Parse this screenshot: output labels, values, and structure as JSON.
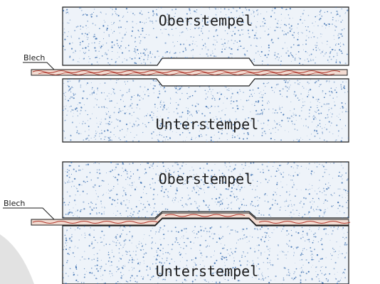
{
  "top_panel": {
    "upper_die_label": "Oberstempel",
    "lower_die_label": "Unterstempel",
    "sheet_label": "Blech"
  },
  "bottom_panel": {
    "upper_die_label": "Oberstempel",
    "lower_die_label": "Unterstempel",
    "sheet_label": "Blech"
  },
  "colors": {
    "die_fill": "#eef3f9",
    "speckle": "#3b6fb0",
    "sheet_fill": "#f3dcd2",
    "sheet_wave": "#b0392e",
    "outline": "#1a1a1a"
  }
}
